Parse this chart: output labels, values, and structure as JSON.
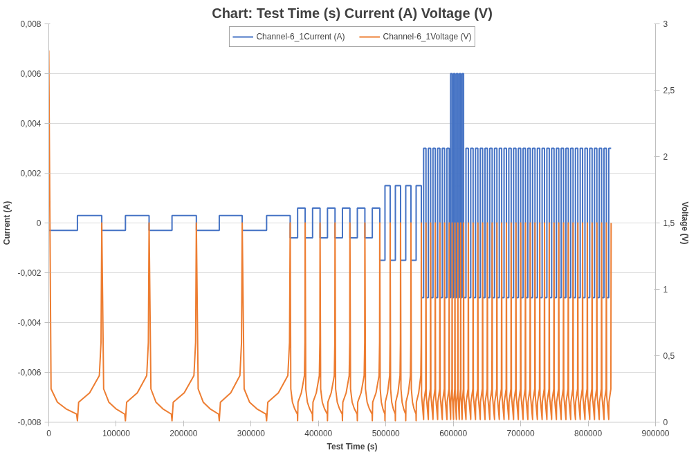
{
  "chart_data": {
    "type": "line",
    "title": "Chart: Test Time (s) Current (A) Voltage (V)",
    "xlabel": "Test Time (s)",
    "ylabel": "Current (A)",
    "y2label": "Voltage (V)",
    "xlim": [
      0,
      900000
    ],
    "xticks": [
      0,
      100000,
      200000,
      300000,
      400000,
      500000,
      600000,
      700000,
      800000,
      900000
    ],
    "ylim": [
      -0.008,
      0.008
    ],
    "yticks": [
      {
        "value": -0.008,
        "label": "-0,008"
      },
      {
        "value": -0.006,
        "label": "-0,006"
      },
      {
        "value": -0.004,
        "label": "-0,004"
      },
      {
        "value": -0.002,
        "label": "-0,002"
      },
      0,
      {
        "value": 0.002,
        "label": "0,002"
      },
      {
        "value": 0.004,
        "label": "0,004"
      },
      {
        "value": 0.006,
        "label": "0,006"
      },
      {
        "value": 0.008,
        "label": "0,008"
      }
    ],
    "y2lim": [
      0,
      3
    ],
    "y2ticks": [
      0,
      {
        "value": 0.5,
        "label": "0,5"
      },
      1,
      {
        "value": 1.5,
        "label": "1,5"
      },
      2,
      {
        "value": 2.5,
        "label": "2,5"
      },
      3
    ],
    "grid": "y",
    "legend": "top",
    "series": [
      {
        "name": "Channel-6_1Current (A)",
        "type": "step",
        "color": "#4472c4",
        "x": [
          0,
          42500,
          78600,
          113700,
          148800,
          182800,
          218900,
          252900,
          286900,
          323100,
          358100,
          369100,
          380300,
          391300,
          402400,
          413400,
          424600,
          435600,
          446700,
          457700,
          468900,
          479900,
          491000,
          498700,
          506400,
          514100,
          521800,
          529500,
          537200,
          544900,
          552600,
          556000,
          559500,
          563000,
          566400,
          569900,
          573300,
          576800,
          580200,
          583700,
          587100,
          590600,
          594000,
          596100,
          598300,
          600400,
          602500,
          604600,
          606800,
          608900,
          611000,
          613100,
          615300,
          618830,
          622360,
          625890,
          629420,
          632950,
          636480,
          640010,
          643540,
          647070,
          650600,
          654130,
          657660,
          661190,
          664720,
          668250,
          671780,
          675310,
          678840,
          682370,
          685900,
          689430,
          692960,
          696490,
          700020,
          703550,
          707080,
          710610,
          714140,
          717670,
          721200,
          724730,
          728260,
          731790,
          735320,
          738850,
          742380,
          745910,
          749440,
          752970,
          756500,
          760030,
          763560,
          767090,
          770620,
          774150,
          777680,
          781210,
          784740,
          788270,
          791800,
          795330,
          798860,
          802390,
          805920,
          809450,
          812980,
          816510,
          820040,
          823570,
          827100,
          830630,
          834160
        ],
        "values": [
          -0.0003,
          0.0003,
          -0.0003,
          0.0003,
          -0.0003,
          0.0003,
          -0.0003,
          0.0003,
          -0.0003,
          0.0003,
          -0.0006,
          0.0006,
          -0.0006,
          0.0006,
          -0.0006,
          0.0006,
          -0.0006,
          0.0006,
          -0.0006,
          0.0006,
          -0.0006,
          0.0006,
          -0.0015,
          0.0015,
          -0.0015,
          0.0015,
          -0.0015,
          0.0015,
          -0.0015,
          0.0015,
          -0.003,
          0.003,
          -0.003,
          0.003,
          -0.003,
          0.003,
          -0.003,
          0.003,
          -0.003,
          0.003,
          -0.003,
          0.003,
          -0.003,
          0.006,
          -0.003,
          0.006,
          -0.003,
          0.006,
          -0.003,
          0.006,
          -0.003,
          0.006,
          -0.003,
          0.003,
          -0.003,
          0.003,
          -0.003,
          0.003,
          -0.003,
          0.003,
          -0.003,
          0.003,
          -0.003,
          0.003,
          -0.003,
          0.003,
          -0.003,
          0.003,
          -0.003,
          0.003,
          -0.003,
          0.003,
          -0.003,
          0.003,
          -0.003,
          0.003,
          -0.003,
          0.003,
          -0.003,
          0.003,
          -0.003,
          0.003,
          -0.003,
          0.003,
          -0.003,
          0.003,
          -0.003,
          0.003,
          -0.003,
          0.003,
          -0.003,
          0.003,
          -0.003,
          0.003,
          -0.003,
          0.003,
          -0.003,
          0.003,
          -0.003,
          0.003,
          -0.003,
          0.003,
          -0.003,
          0.003,
          -0.003,
          0.003,
          -0.003,
          0.003,
          -0.003,
          0.003,
          -0.003,
          0.003,
          -0.003,
          0.003,
          0.003
        ]
      },
      {
        "name": "Channel-6_1Voltage (V)",
        "axis": "y2",
        "color": "#ed7d31",
        "x": [
          0,
          3400,
          12800,
          25500,
          41200,
          42500,
          44300,
          60600,
          75000,
          77500,
          78600,
          81400,
          89100,
          99700,
          112600,
          113700,
          115500,
          131300,
          145300,
          147700,
          148800,
          151500,
          159000,
          169200,
          181800,
          182800,
          184600,
          200900,
          215300,
          217800,
          218900,
          221600,
          229100,
          239300,
          251900,
          252900,
          254600,
          269900,
          283500,
          285900,
          286900,
          289800,
          297800,
          308600,
          322000,
          323100,
          324900,
          340600,
          354600,
          357100,
          358100,
          359000,
          361400,
          364700,
          368800,
          369100,
          369700,
          374600,
          379200,
          380000,
          380300,
          381200,
          383600,
          386900,
          391000,
          391300,
          391900,
          396800,
          401300,
          402100,
          402400,
          403300,
          405700,
          409000,
          413100,
          413400,
          414000,
          418900,
          423500,
          424300,
          424600,
          425500,
          427900,
          431200,
          435300,
          435600,
          436200,
          441100,
          445600,
          446400,
          446700,
          447600,
          450000,
          453300,
          457400,
          457700,
          458300,
          463200,
          467800,
          468600,
          468900,
          469800,
          472200,
          475500,
          479600,
          479900,
          480500,
          485400,
          489900,
          490700,
          491000,
          491600,
          493300,
          495600,
          498500,
          498700,
          499100,
          502500,
          505600,
          506200,
          506400,
          507000,
          508700,
          511000,
          513900,
          514100,
          514500,
          517900,
          521000,
          521600,
          521800,
          522400,
          524100,
          526400,
          529300,
          529500,
          529900,
          533300,
          536400,
          537000,
          537200,
          537800,
          539500,
          541800,
          544700,
          544900,
          545300,
          548700,
          551800,
          552400,
          552600,
          553000,
          556000,
          556300,
          559100,
          559500,
          559900,
          563000,
          563300,
          566000,
          566400,
          566800,
          569900,
          570200,
          572900,
          573300,
          573700,
          576800,
          577100,
          579800,
          580200,
          580600,
          583700,
          584000,
          586700,
          587100,
          587500,
          590600,
          590900,
          593600,
          594000,
          594300,
          596100,
          596300,
          598000,
          598300,
          598600,
          600400,
          600600,
          602200,
          602500,
          602800,
          604600,
          604800,
          606500,
          606800,
          607100,
          608900,
          609100,
          610700,
          611000,
          611300,
          613100,
          613300,
          615000,
          615300,
          615700,
          618830,
          619130,
          621960,
          622360,
          622760,
          625890,
          626190,
          629020,
          629420,
          629820,
          632950,
          633250,
          636080,
          636480,
          636880,
          640010,
          640310,
          643140,
          643540,
          643940,
          647070,
          647370,
          650200,
          650600,
          651000,
          654130,
          654430,
          657260,
          657660,
          658060,
          661190,
          661490,
          664320,
          664720,
          665120,
          668250,
          668550,
          671380,
          671780,
          672180,
          675310,
          675610,
          678440,
          678840,
          679240,
          682370,
          682670,
          685500,
          685900,
          686300,
          689430,
          689730,
          692560,
          692960,
          693360,
          696490,
          696790,
          699620,
          700020,
          700420,
          703550,
          703850,
          706680,
          707080,
          707480,
          710610,
          710910,
          713740,
          714140,
          714540,
          717670,
          717970,
          720800,
          721200,
          721600,
          724730,
          725030,
          727860,
          728260,
          728660,
          731790,
          732090,
          734920,
          735320,
          735720,
          738850,
          739150,
          741980,
          742380,
          742780,
          745910,
          746210,
          749040,
          749440,
          749840,
          752970,
          753270,
          756100,
          756500,
          756900,
          760030,
          760330,
          763160,
          763560,
          763960,
          767090,
          767390,
          770220,
          770620,
          771020,
          774150,
          774450,
          777280,
          777680,
          778080,
          781210,
          781510,
          784340,
          784740,
          785140,
          788270,
          788570,
          791400,
          791800,
          792200,
          795330,
          795630,
          798460,
          798860,
          799260,
          802390,
          802690,
          805520,
          805920,
          806320,
          809450,
          809750,
          812580,
          812980,
          813380,
          816510,
          816810,
          819640,
          820040,
          820440,
          823570,
          823870,
          826700,
          827100,
          827500,
          830630,
          830930,
          833760,
          834160
        ],
        "values": [
          2.8,
          0.25,
          0.15,
          0.1,
          0.06,
          0.01,
          0.15,
          0.22,
          0.35,
          0.6,
          1.5,
          0.25,
          0.15,
          0.1,
          0.06,
          0.01,
          0.15,
          0.22,
          0.35,
          0.6,
          1.5,
          0.25,
          0.15,
          0.1,
          0.06,
          0.01,
          0.15,
          0.22,
          0.35,
          0.6,
          1.5,
          0.25,
          0.15,
          0.1,
          0.06,
          0.01,
          0.15,
          0.22,
          0.35,
          0.6,
          1.5,
          0.25,
          0.15,
          0.1,
          0.06,
          0.01,
          0.15,
          0.22,
          0.35,
          0.6,
          1.5,
          0.25,
          0.15,
          0.1,
          0.06,
          0.01,
          0.15,
          0.22,
          0.35,
          0.6,
          1.5,
          0.25,
          0.15,
          0.1,
          0.06,
          0.01,
          0.15,
          0.22,
          0.35,
          0.6,
          1.5,
          0.25,
          0.15,
          0.1,
          0.06,
          0.01,
          0.15,
          0.22,
          0.35,
          0.6,
          1.5,
          0.25,
          0.15,
          0.1,
          0.06,
          0.01,
          0.15,
          0.22,
          0.35,
          0.6,
          1.5,
          0.25,
          0.15,
          0.1,
          0.06,
          0.01,
          0.15,
          0.22,
          0.35,
          0.6,
          1.5,
          0.25,
          0.15,
          0.1,
          0.06,
          0.01,
          0.15,
          0.22,
          0.35,
          0.6,
          1.5,
          0.25,
          0.15,
          0.1,
          0.06,
          0.01,
          0.15,
          0.22,
          0.35,
          0.6,
          1.5,
          0.25,
          0.15,
          0.1,
          0.06,
          0.01,
          0.15,
          0.22,
          0.35,
          0.6,
          1.5,
          0.25,
          0.15,
          0.1,
          0.06,
          0.01,
          0.15,
          0.22,
          0.35,
          0.6,
          1.5,
          0.25,
          0.15,
          0.1,
          0.06,
          0.01,
          0.15,
          0.22,
          0.35,
          0.6,
          1.5,
          0.2,
          0.02,
          0.15,
          0.25,
          1.5,
          0.2,
          0.02,
          0.15,
          0.25,
          1.5,
          0.2,
          0.02,
          0.15,
          0.25,
          1.5,
          0.2,
          0.02,
          0.15,
          0.25,
          1.5,
          0.2,
          0.02,
          0.15,
          0.25,
          1.5,
          0.2,
          0.02,
          0.15,
          0.25,
          1.5,
          0.2,
          0.02,
          0.15,
          0.25,
          1.5,
          0.2,
          0.02,
          0.15,
          0.25,
          1.5,
          0.2,
          0.02,
          0.15,
          0.25,
          1.5,
          0.2,
          0.02,
          0.15,
          0.25,
          1.5,
          0.2,
          0.02,
          0.15,
          0.25,
          1.5,
          0.2,
          0.02,
          0.15,
          0.25,
          1.5,
          0.2,
          0.02,
          0.15,
          0.25,
          1.5,
          0.2,
          0.02,
          0.15,
          0.25,
          1.5,
          0.2,
          0.02,
          0.15,
          0.25,
          1.5,
          0.2,
          0.02,
          0.15,
          0.25,
          1.5,
          0.2,
          0.02,
          0.15,
          0.25,
          1.5,
          0.2,
          0.02,
          0.15,
          0.25,
          1.5,
          0.2,
          0.02,
          0.15,
          0.25,
          1.5,
          0.2,
          0.02,
          0.15,
          0.25,
          1.5,
          0.2,
          0.02,
          0.15,
          0.25,
          1.5,
          0.2,
          0.02,
          0.15,
          0.25,
          1.5,
          0.2,
          0.02,
          0.15,
          0.25,
          1.5,
          0.2,
          0.02,
          0.15,
          0.25,
          1.5,
          0.2,
          0.02,
          0.15,
          0.25,
          1.5,
          0.2,
          0.02,
          0.15,
          0.25,
          1.5,
          0.2,
          0.02,
          0.15,
          0.25,
          1.5,
          0.2,
          0.02,
          0.15,
          0.25,
          1.5,
          0.2,
          0.02,
          0.15,
          0.25,
          1.5,
          0.2,
          0.02,
          0.15,
          0.25,
          1.5,
          0.2,
          0.02,
          0.15,
          0.25,
          1.5,
          0.2,
          0.02,
          0.15,
          0.25,
          1.5,
          0.2,
          0.02,
          0.15,
          0.25,
          1.5,
          0.2,
          0.02,
          0.15,
          0.25,
          1.5,
          0.2,
          0.02,
          0.15,
          0.25,
          1.5,
          0.2,
          0.02,
          0.15,
          0.25,
          1.5,
          0.2,
          0.02,
          0.15,
          0.25,
          1.5,
          0.2,
          0.02,
          0.15,
          0.25,
          1.5,
          0.2,
          0.02,
          0.15,
          0.25,
          1.5,
          0.2,
          0.02,
          0.15,
          0.25,
          1.5,
          0.2,
          0.02,
          0.15,
          0.25,
          1.5,
          0.2,
          0.02,
          0.15,
          0.25,
          1.5
        ]
      }
    ]
  }
}
